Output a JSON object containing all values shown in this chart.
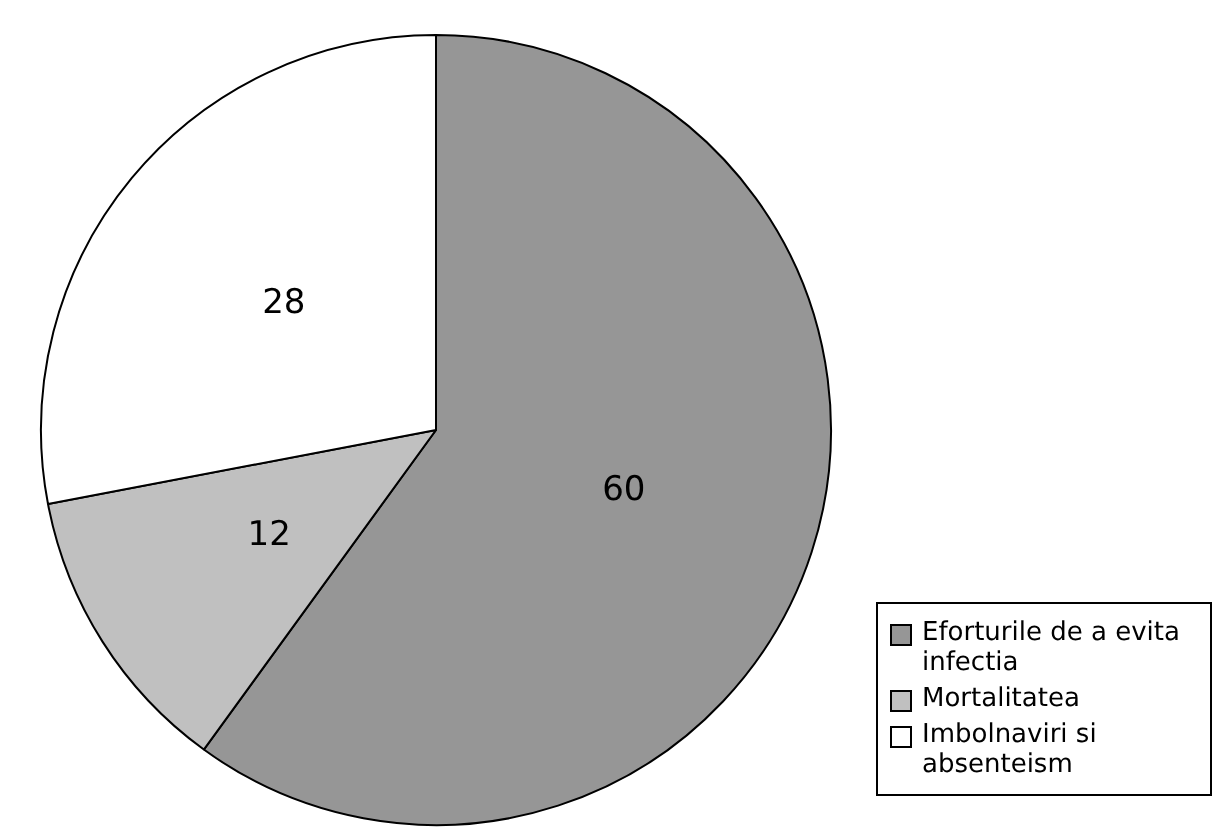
{
  "chart_data": {
    "type": "pie",
    "categories": [
      "Eforturile de a evita infectia",
      "Mortalitatea",
      "Imbolnaviri si absenteism"
    ],
    "values": [
      60,
      12,
      28
    ],
    "colors": [
      "#969696",
      "#c0c0c0",
      "#ffffff"
    ],
    "data_labels": true,
    "legend": "bottom right"
  }
}
